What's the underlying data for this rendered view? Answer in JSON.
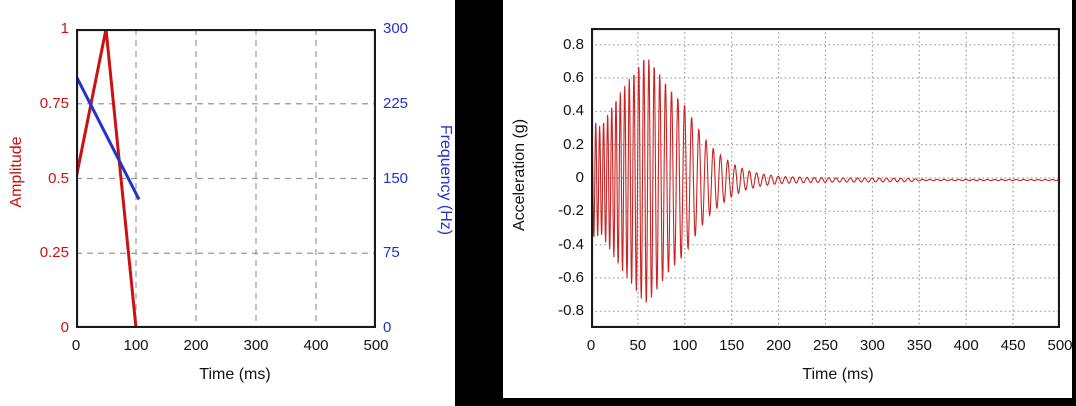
{
  "chart_data": [
    {
      "name": "pulse-definition-chart",
      "type": "line",
      "xlabel": "Time (ms)",
      "xlim": [
        0,
        500
      ],
      "xticks": [
        0,
        100,
        200,
        300,
        400,
        500
      ],
      "grid": {
        "style": "dashed",
        "color": "#9a9a9a"
      },
      "frame_color": "#1a1a1a",
      "left_axis": {
        "label": "Amplitude",
        "color": "#cc1111",
        "lim": [
          0,
          1
        ],
        "ticks": [
          {
            "label": "1",
            "value": 1
          },
          {
            "label": "0.75",
            "value": 0.75
          },
          {
            "label": "0.5",
            "value": 0.5
          },
          {
            "label": "0.25",
            "value": 0.25
          },
          {
            "label": "0",
            "value": 0
          }
        ]
      },
      "right_axis": {
        "label": "Frequency (Hz)",
        "color": "#2233cc",
        "lim": [
          0,
          300
        ],
        "ticks": [
          {
            "label": "300",
            "value": 300
          },
          {
            "label": "225",
            "value": 225
          },
          {
            "label": "150",
            "value": 150
          },
          {
            "label": "75",
            "value": 75
          },
          {
            "label": "0",
            "value": 0
          }
        ]
      },
      "series": [
        {
          "name": "amplitude-envelope",
          "axis": "left",
          "color": "#cc1111",
          "stroke_width": 3,
          "points": [
            [
              0,
              0.5
            ],
            [
              50,
              1.0
            ],
            [
              100,
              0.0
            ]
          ]
        },
        {
          "name": "frequency-sweep",
          "axis": "right",
          "color": "#2233cc",
          "stroke_width": 3,
          "points": [
            [
              0,
              253
            ],
            [
              105,
              129
            ]
          ]
        }
      ]
    },
    {
      "name": "acceleration-response-chart",
      "type": "line",
      "xlabel": "Time (ms)",
      "ylabel": "Acceleration (g)",
      "xlim": [
        0,
        500
      ],
      "ylim": [
        -0.9,
        0.9
      ],
      "xticks": [
        0,
        50,
        100,
        150,
        200,
        250,
        300,
        350,
        400,
        450,
        500
      ],
      "yticks": [
        {
          "label": "0.8",
          "value": 0.8
        },
        {
          "label": "0.6",
          "value": 0.6
        },
        {
          "label": "0.4",
          "value": 0.4
        },
        {
          "label": "0.2",
          "value": 0.2
        },
        {
          "label": "0",
          "value": 0
        },
        {
          "label": "-0.2",
          "value": -0.2
        },
        {
          "label": "-0.4",
          "value": -0.4
        },
        {
          "label": "-0.6",
          "value": -0.6
        },
        {
          "label": "-0.8",
          "value": -0.8
        }
      ],
      "grid": {
        "style": "dotted",
        "color": "#a0a0a0"
      },
      "frame_color": "#1a1a1a",
      "series": [
        {
          "name": "acceleration",
          "color": "#cc2222",
          "stroke_width": 1.1,
          "signal": {
            "kind": "amplitude-modulated sine with linear frequency sweep",
            "envelope_points_ms_g": [
              [
                0,
                0.33
              ],
              [
                4,
                0.36
              ],
              [
                10,
                0.32
              ],
              [
                18,
                0.4
              ],
              [
                28,
                0.5
              ],
              [
                40,
                0.6
              ],
              [
                50,
                0.68
              ],
              [
                58,
                0.75
              ],
              [
                66,
                0.7
              ],
              [
                75,
                0.62
              ],
              [
                88,
                0.52
              ],
              [
                100,
                0.45
              ],
              [
                112,
                0.33
              ],
              [
                125,
                0.22
              ],
              [
                138,
                0.15
              ],
              [
                150,
                0.1
              ],
              [
                165,
                0.06
              ],
              [
                180,
                0.038
              ],
              [
                200,
                0.022
              ],
              [
                230,
                0.016
              ],
              [
                260,
                0.013
              ],
              [
                300,
                0.012
              ],
              [
                340,
                0.01
              ],
              [
                352,
                0.004
              ],
              [
                500,
                0.003
              ]
            ],
            "frequency_hz": {
              "start": 250,
              "end": 130,
              "sweep_end_ms": 105
            },
            "baseline_g": -0.012,
            "peak_g": 0.75,
            "peak_time_ms": 58,
            "sample_step_ms": 0.4
          }
        }
      ]
    }
  ]
}
